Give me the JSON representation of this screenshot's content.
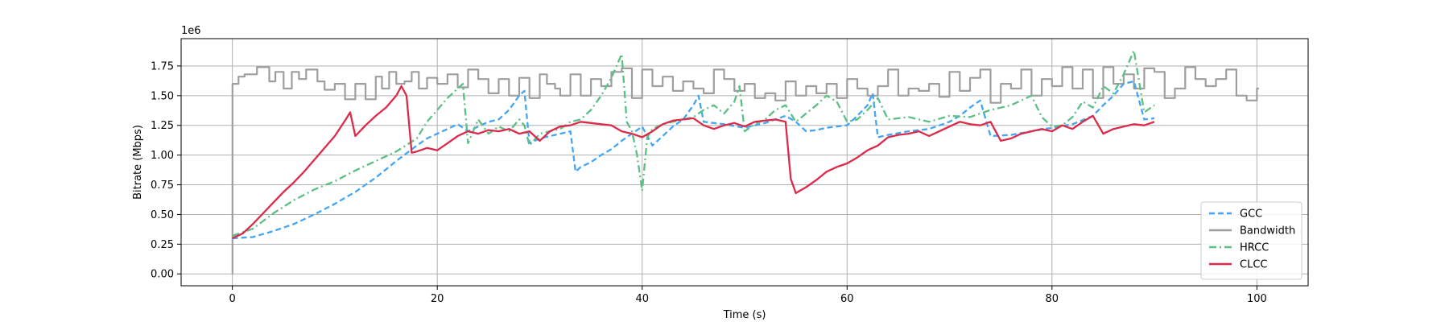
{
  "chart_data": {
    "type": "line",
    "title": "",
    "xlabel": "Time (s)",
    "ylabel": "Bitrate (Mbps)",
    "y_offset_text": "1e6",
    "xlim": [
      -5,
      105
    ],
    "ylim": [
      -100000,
      1980000
    ],
    "xticks": [
      0,
      20,
      40,
      60,
      80,
      100
    ],
    "xtick_labels": [
      "0",
      "20",
      "40",
      "60",
      "80",
      "100"
    ],
    "yticks": [
      0,
      250000,
      500000,
      750000,
      1000000,
      1250000,
      1500000,
      1750000
    ],
    "ytick_labels": [
      "0.00",
      "0.25",
      "0.50",
      "0.75",
      "1.00",
      "1.25",
      "1.50",
      "1.75"
    ],
    "grid": true,
    "legend_position": "lower-right",
    "series": [
      {
        "name": "GCC",
        "color": "#42a5f5",
        "style": "dashed",
        "step": false,
        "x": [
          0,
          2,
          4,
          6,
          8,
          10,
          12,
          14,
          16,
          18,
          19,
          20,
          21,
          22,
          23,
          24,
          25,
          26,
          27,
          28,
          28.5,
          29,
          30,
          32,
          33,
          33.5,
          34,
          35,
          36,
          37,
          38,
          39,
          40,
          41,
          42,
          43,
          44,
          45,
          45.5,
          46,
          48,
          50,
          52,
          54,
          55,
          56,
          57,
          58,
          59,
          60,
          61,
          62,
          62.5,
          63,
          64,
          66,
          68,
          70,
          71,
          72,
          73,
          74,
          76,
          78,
          80,
          82,
          84,
          85,
          86,
          87,
          88,
          89,
          90
        ],
        "y": [
          300000,
          310000,
          360000,
          420000,
          500000,
          590000,
          690000,
          810000,
          950000,
          1080000,
          1140000,
          1180000,
          1220000,
          1260000,
          1200000,
          1240000,
          1280000,
          1300000,
          1380000,
          1500000,
          1540000,
          1100000,
          1140000,
          1180000,
          1200000,
          860000,
          900000,
          940000,
          1000000,
          1050000,
          1120000,
          1180000,
          1240000,
          1080000,
          1160000,
          1240000,
          1300000,
          1420000,
          1500000,
          1280000,
          1260000,
          1230000,
          1270000,
          1330000,
          1280000,
          1200000,
          1210000,
          1230000,
          1240000,
          1250000,
          1330000,
          1420000,
          1520000,
          1150000,
          1170000,
          1200000,
          1220000,
          1280000,
          1330000,
          1400000,
          1460000,
          1160000,
          1170000,
          1200000,
          1230000,
          1260000,
          1330000,
          1420000,
          1500000,
          1600000,
          1620000,
          1300000,
          1310000
        ]
      },
      {
        "name": "Bandwidth",
        "color": "#9e9e9e",
        "style": "solid",
        "step": true,
        "x": [
          0,
          0.01,
          0.6,
          1.2,
          2.4,
          3.6,
          4.2,
          5.0,
          5.8,
          6.5,
          7.2,
          8.3,
          9.0,
          10.0,
          11.0,
          12.0,
          13.0,
          14.0,
          14.6,
          15.3,
          16.0,
          16.8,
          17.5,
          18.2,
          19.0,
          20.0,
          21.0,
          22.0,
          23.0,
          24.0,
          25.0,
          26.0,
          27.0,
          28.0,
          29.0,
          30.0,
          30.7,
          31.5,
          32.0,
          33.0,
          34.0,
          35.0,
          36.0,
          37.0,
          38.0,
          39.0,
          40.0,
          41.0,
          42.0,
          43.0,
          44.0,
          45.0,
          46.0,
          47.0,
          48.0,
          49.0,
          50.0,
          51.0,
          52.0,
          53.0,
          54.0,
          55.0,
          56.0,
          57.0,
          58.0,
          59.0,
          60.0,
          61.0,
          62.0,
          63.0,
          64.0,
          65.0,
          66.0,
          67.0,
          68.0,
          69.0,
          70.0,
          71.0,
          72.0,
          73.0,
          74.0,
          75.0,
          76.0,
          77.0,
          78.0,
          79.0,
          80.0,
          81.0,
          82.0,
          83.0,
          84.0,
          85.0,
          86.0,
          87.0,
          88.0,
          89.0,
          90.0,
          91.0,
          92.0,
          93.0,
          94.0,
          95.0,
          96.0,
          97.0,
          98.0,
          99.0,
          100.0,
          100.2
        ],
        "y": [
          0,
          1600000,
          1660000,
          1680000,
          1740000,
          1620000,
          1700000,
          1560000,
          1700000,
          1640000,
          1720000,
          1620000,
          1550000,
          1600000,
          1470000,
          1600000,
          1470000,
          1660000,
          1560000,
          1700000,
          1600000,
          1620000,
          1700000,
          1560000,
          1650000,
          1600000,
          1680000,
          1570000,
          1720000,
          1640000,
          1520000,
          1640000,
          1500000,
          1650000,
          1480000,
          1680000,
          1600000,
          1560000,
          1500000,
          1680000,
          1500000,
          1640000,
          1580000,
          1700000,
          1730000,
          1480000,
          1720000,
          1580000,
          1660000,
          1540000,
          1620000,
          1560000,
          1520000,
          1720000,
          1640000,
          1540000,
          1600000,
          1480000,
          1520000,
          1460000,
          1620000,
          1500000,
          1580000,
          1520000,
          1600000,
          1480000,
          1640000,
          1560000,
          1500000,
          1580000,
          1720000,
          1500000,
          1560000,
          1540000,
          1600000,
          1490000,
          1700000,
          1540000,
          1650000,
          1720000,
          1440000,
          1600000,
          1560000,
          1720000,
          1500000,
          1640000,
          1580000,
          1740000,
          1560000,
          1720000,
          1480000,
          1740000,
          1600000,
          1680000,
          1560000,
          1730000,
          1700000,
          1480000,
          1560000,
          1740000,
          1640000,
          1580000,
          1640000,
          1720000,
          1500000,
          1460000,
          1560000,
          1560000
        ],
        "legend_order": 1
      },
      {
        "name": "HRCC",
        "color": "#5cbf84",
        "style": "dashdot",
        "step": false,
        "x": [
          0,
          2,
          4,
          6,
          8,
          10,
          12,
          14,
          16,
          18,
          19,
          20,
          21,
          22,
          22.5,
          23,
          24,
          25,
          26,
          27,
          28,
          28.5,
          29,
          30,
          31,
          32,
          33,
          34,
          35,
          36,
          37,
          38,
          38.5,
          39,
          39.5,
          40,
          40.5,
          41,
          42,
          43,
          44,
          45,
          46,
          47,
          48,
          49,
          49.5,
          50,
          51,
          52,
          53,
          54,
          55,
          56,
          57,
          58,
          59,
          60,
          61,
          62,
          63,
          64,
          66,
          68,
          70,
          72,
          74,
          76,
          78,
          79,
          80,
          81,
          82,
          83,
          84,
          85,
          86,
          87,
          88,
          89,
          90
        ],
        "y": [
          320000,
          380000,
          510000,
          620000,
          710000,
          780000,
          870000,
          950000,
          1030000,
          1140000,
          1280000,
          1380000,
          1480000,
          1560000,
          1600000,
          1100000,
          1300000,
          1180000,
          1240000,
          1200000,
          1300000,
          1250000,
          1080000,
          1180000,
          1200000,
          1220000,
          1280000,
          1300000,
          1380000,
          1500000,
          1650000,
          1850000,
          1280000,
          1200000,
          1000000,
          700000,
          1150000,
          1220000,
          1260000,
          1280000,
          1300000,
          1320000,
          1380000,
          1420000,
          1350000,
          1450000,
          1580000,
          1200000,
          1260000,
          1300000,
          1380000,
          1420000,
          1280000,
          1350000,
          1420000,
          1500000,
          1450000,
          1280000,
          1300000,
          1380000,
          1480000,
          1300000,
          1320000,
          1280000,
          1330000,
          1320000,
          1380000,
          1420000,
          1500000,
          1320000,
          1240000,
          1250000,
          1320000,
          1450000,
          1400000,
          1580000,
          1520000,
          1680000,
          1880000,
          1360000,
          1420000
        ],
        "legend_order": 2
      },
      {
        "name": "CLCC",
        "color": "#dc2a4a",
        "style": "solid",
        "step": false,
        "x": [
          0,
          1,
          2,
          3,
          4,
          5,
          6,
          7,
          8,
          9,
          10,
          11,
          11.5,
          12,
          13,
          14,
          15,
          16,
          16.5,
          17,
          17.5,
          18,
          19,
          20,
          21,
          22,
          23,
          24,
          25,
          26,
          27,
          28,
          29,
          30,
          31,
          32,
          33,
          34,
          35,
          36,
          37,
          38,
          39,
          40,
          41,
          42,
          43,
          44,
          45,
          46,
          47,
          48,
          49,
          50,
          51,
          52,
          53,
          54,
          54.5,
          55,
          56,
          57,
          58,
          59,
          60,
          61,
          62,
          63,
          64,
          65,
          66,
          67,
          68,
          69,
          70,
          71,
          72,
          73,
          74,
          75,
          76,
          77,
          78,
          79,
          80,
          81,
          82,
          83,
          84,
          85,
          86,
          87,
          88,
          89,
          90
        ],
        "y": [
          300000,
          340000,
          420000,
          510000,
          600000,
          690000,
          770000,
          860000,
          960000,
          1060000,
          1160000,
          1290000,
          1360000,
          1160000,
          1250000,
          1330000,
          1400000,
          1500000,
          1580000,
          1500000,
          1020000,
          1030000,
          1060000,
          1040000,
          1100000,
          1160000,
          1200000,
          1180000,
          1210000,
          1200000,
          1220000,
          1180000,
          1200000,
          1120000,
          1200000,
          1240000,
          1250000,
          1280000,
          1270000,
          1260000,
          1250000,
          1200000,
          1180000,
          1150000,
          1200000,
          1260000,
          1290000,
          1300000,
          1310000,
          1250000,
          1220000,
          1250000,
          1270000,
          1240000,
          1280000,
          1290000,
          1300000,
          1280000,
          800000,
          680000,
          730000,
          790000,
          860000,
          900000,
          930000,
          980000,
          1040000,
          1080000,
          1150000,
          1170000,
          1180000,
          1200000,
          1160000,
          1200000,
          1240000,
          1280000,
          1260000,
          1250000,
          1280000,
          1120000,
          1140000,
          1180000,
          1200000,
          1220000,
          1200000,
          1250000,
          1220000,
          1280000,
          1330000,
          1180000,
          1220000,
          1240000,
          1260000,
          1250000,
          1280000
        ],
        "legend_order": 3
      }
    ]
  }
}
